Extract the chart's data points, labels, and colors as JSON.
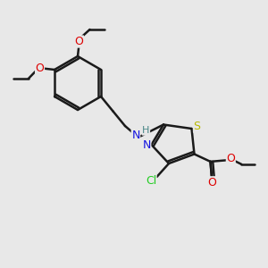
{
  "bg_color": "#e8e8e8",
  "bond_color": "#1a1a1a",
  "N_color": "#1414e0",
  "S_color": "#b8b800",
  "O_color": "#dd0000",
  "Cl_color": "#22cc22",
  "H_color": "#4a8888",
  "bond_width": 1.8,
  "figsize": [
    3.0,
    3.0
  ],
  "dpi": 100,
  "xlim": [
    0,
    10
  ],
  "ylim": [
    0,
    10
  ]
}
